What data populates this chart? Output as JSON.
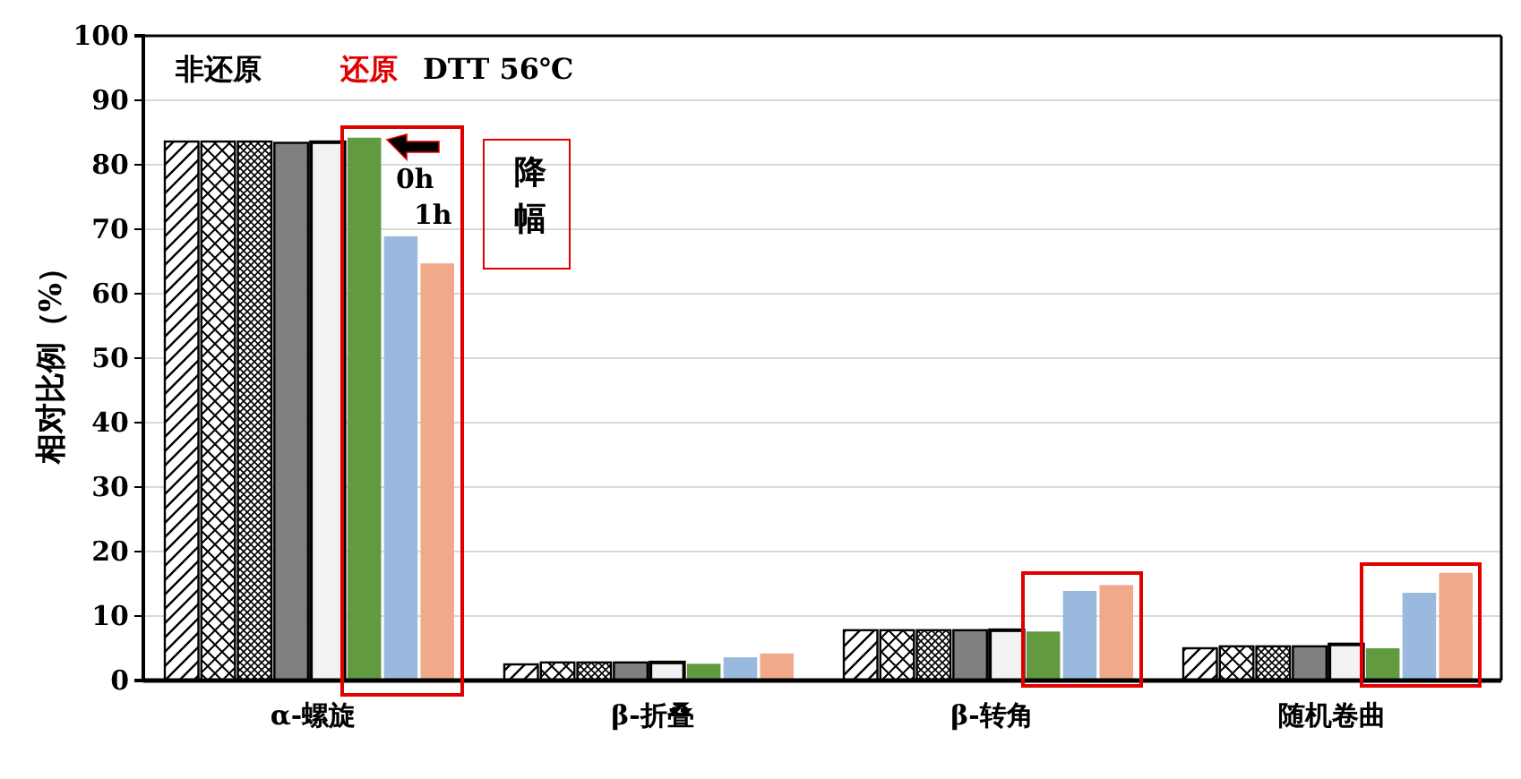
{
  "chart_data": {
    "type": "bar",
    "ylabel": "相对比例（%）",
    "categories": [
      "α-螺旋",
      "β-折叠",
      "β-转角",
      "随机卷曲"
    ],
    "series": [
      {
        "color": "#000000",
        "values": [
          83.6,
          2.5,
          7.8,
          5.0
        ]
      },
      {
        "color": "#000000",
        "values": [
          83.6,
          2.8,
          7.8,
          5.3
        ]
      },
      {
        "color": "#000000",
        "values": [
          83.6,
          2.8,
          7.8,
          5.3
        ]
      },
      {
        "color": "#808080",
        "values": [
          83.4,
          2.8,
          7.8,
          5.3
        ]
      },
      {
        "color": "#f2f2f2",
        "values": [
          83.5,
          2.8,
          7.8,
          5.6
        ]
      },
      {
        "color": "#629a3f",
        "values": [
          84.2,
          2.6,
          7.6,
          5.0
        ]
      },
      {
        "color": "#9ab9df",
        "values": [
          68.9,
          3.6,
          13.9,
          13.6
        ]
      },
      {
        "color": "#f0a98a",
        "values": [
          64.7,
          4.2,
          14.8,
          16.7
        ]
      }
    ],
    "ylim": [
      0,
      100
    ],
    "yticks": [
      0,
      10,
      20,
      30,
      40,
      50,
      60,
      70,
      80,
      90,
      100
    ],
    "grid": "y",
    "annotations": [
      "非还原",
      "还原",
      "DTT  56℃",
      "0h",
      "1h",
      "降幅"
    ]
  }
}
